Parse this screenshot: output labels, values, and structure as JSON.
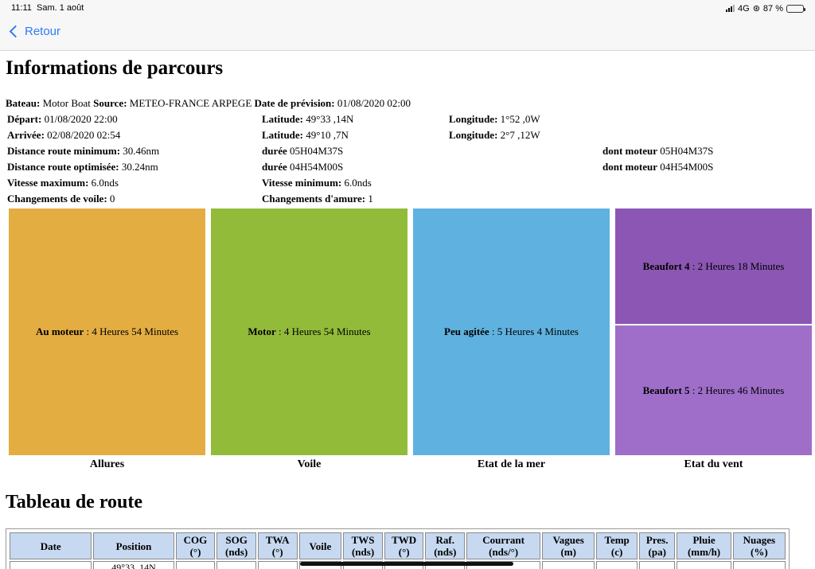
{
  "statusbar": {
    "time": "11:11",
    "date": "Sam. 1 août",
    "network": "4G",
    "battery": "87 %",
    "battery_level": 0.87,
    "icons": [
      "signal-icon",
      "orientation-lock-icon",
      "battery-icon"
    ]
  },
  "nav": {
    "back_label": "Retour",
    "back_icon": "chevron-left-icon",
    "accent": "#2f7cf6"
  },
  "title": "Informations de parcours",
  "info": {
    "r1": {
      "k1": "Bateau:",
      "v1": " Motor Boat ",
      "k2": "Source:",
      "v2": " METEO-FRANCE ARPEGE ",
      "k3": "Date de prévision:",
      "v3": " 01/08/2020 02:00"
    },
    "r2": {
      "k1": "Départ:",
      "v1": " 01/08/2020 22:00",
      "k2": "Latitude:",
      "v2": " 49°33 ,14N",
      "k3": "Longitude:",
      "v3": " 1°52 ,0W"
    },
    "r3": {
      "k1": "Arrivée:",
      "v1": " 02/08/2020 02:54",
      "k2": "Latitude:",
      "v2": " 49°10 ,7N",
      "k3": "Longitude:",
      "v3": " 2°7 ,12W"
    },
    "r4": {
      "k1": "Distance route minimum:",
      "v1": " 30.46nm",
      "k2": "durée",
      "v2": " 05H04M37S",
      "k3": "dont moteur",
      "v3": " 05H04M37S"
    },
    "r5": {
      "k1": "Distance route optimisée:",
      "v1": " 30.24nm",
      "k2": "durée",
      "v2": " 04H54M00S",
      "k3": "dont moteur",
      "v3": " 04H54M00S"
    },
    "r6": {
      "k1": "Vitesse maximum:",
      "v1": " 6.0nds",
      "k2": "Vitesse minimum:",
      "v2": " 6.0nds"
    },
    "r7": {
      "k1": "Changements de voile:",
      "v1": " 0",
      "k2": "Changements d'amure:",
      "v2": " 1"
    }
  },
  "tiles": {
    "allures": {
      "label": "Allures",
      "color": "#e4ad42",
      "items": [
        {
          "name": "Au moteur",
          "value": " : 4 Heures 54 Minutes",
          "color": "#e4ad42"
        }
      ]
    },
    "voile": {
      "label": "Voile",
      "color": "#93bb3a",
      "items": [
        {
          "name": "Motor",
          "value": " : 4 Heures 54 Minutes",
          "color": "#93bb3a"
        }
      ]
    },
    "mer": {
      "label": "Etat de la mer",
      "color": "#5fb2e0",
      "items": [
        {
          "name": "Peu agitée",
          "value": " : 5 Heures 4 Minutes",
          "color": "#5fb2e0"
        }
      ]
    },
    "vent": {
      "label": "Etat du vent",
      "items": [
        {
          "name": "Beaufort 4",
          "value": " : 2 Heures 18 Minutes",
          "color": "#8b56b4"
        },
        {
          "name": "Beaufort 5",
          "value": " : 2 Heures 46 Minutes",
          "color": "#9e6ec9"
        }
      ]
    }
  },
  "route_title": "Tableau de route",
  "table": {
    "header_color": "#c6d9f1",
    "columns": [
      {
        "l1": "Date",
        "l2": ""
      },
      {
        "l1": "Position",
        "l2": ""
      },
      {
        "l1": "COG",
        "l2": "(°)"
      },
      {
        "l1": "SOG",
        "l2": "(nds)"
      },
      {
        "l1": "TWA",
        "l2": "(°)"
      },
      {
        "l1": "Voile",
        "l2": ""
      },
      {
        "l1": "TWS",
        "l2": "(nds)"
      },
      {
        "l1": "TWD",
        "l2": "(°)"
      },
      {
        "l1": "Raf.",
        "l2": "(nds)"
      },
      {
        "l1": "Courrant",
        "l2": "(nds/°)"
      },
      {
        "l1": "Vagues",
        "l2": "(m)"
      },
      {
        "l1": "Temp",
        "l2": "(c)"
      },
      {
        "l1": "Pres.",
        "l2": "(pa)"
      },
      {
        "l1": "Pluie",
        "l2": "(mm/h)"
      },
      {
        "l1": "Nuages",
        "l2": "(%)"
      }
    ],
    "first_row_position": "49°33 ,14N"
  }
}
